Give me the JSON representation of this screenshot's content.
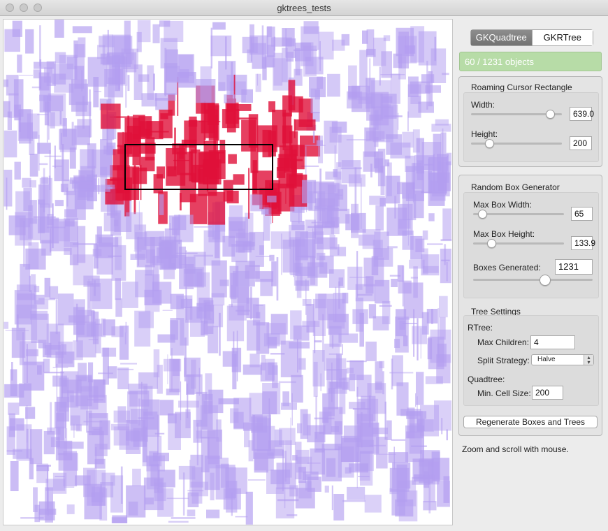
{
  "window": {
    "title": "gktrees_tests"
  },
  "tree_tabs": [
    "GKQuadtree",
    "GKRTree"
  ],
  "object_count": "60 / 1231 objects",
  "roaming_cursor": {
    "title": "Roaming Cursor Rectangle",
    "width_label": "Width:",
    "width_value": "639.0",
    "width_slider": 0.87,
    "height_label": "Height:",
    "height_value": "200",
    "height_slider": 0.2
  },
  "random_box_generator": {
    "title": "Random Box Generator",
    "max_width_label": "Max Box Width:",
    "max_width_value": "65",
    "max_width_slider": 0.1,
    "max_height_label": "Max Box Height:",
    "max_height_value": "133.9",
    "max_height_slider": 0.2,
    "generated_label": "Boxes Generated:",
    "generated_value": "1231",
    "generated_slider": 0.6
  },
  "tree_settings": {
    "title": "Tree Settings",
    "rtree_label": "RTree:",
    "max_children_label": "Max Children:",
    "max_children_value": "4",
    "split_strategy_label": "Split Strategy:",
    "split_strategy_value": "Halve",
    "quadtree_label": "Quadtree:",
    "min_cell_label": "Min. Cell Size:",
    "min_cell_value": "200"
  },
  "regenerate_button": "Regenerate Boxes and Trees",
  "hint": "Zoom and scroll with mouse.",
  "colors": {
    "box_fill": "#b39ef0",
    "box_selected": "#e0103a",
    "accent_green": "#b7dca7",
    "cursor_stroke": "#000000"
  }
}
